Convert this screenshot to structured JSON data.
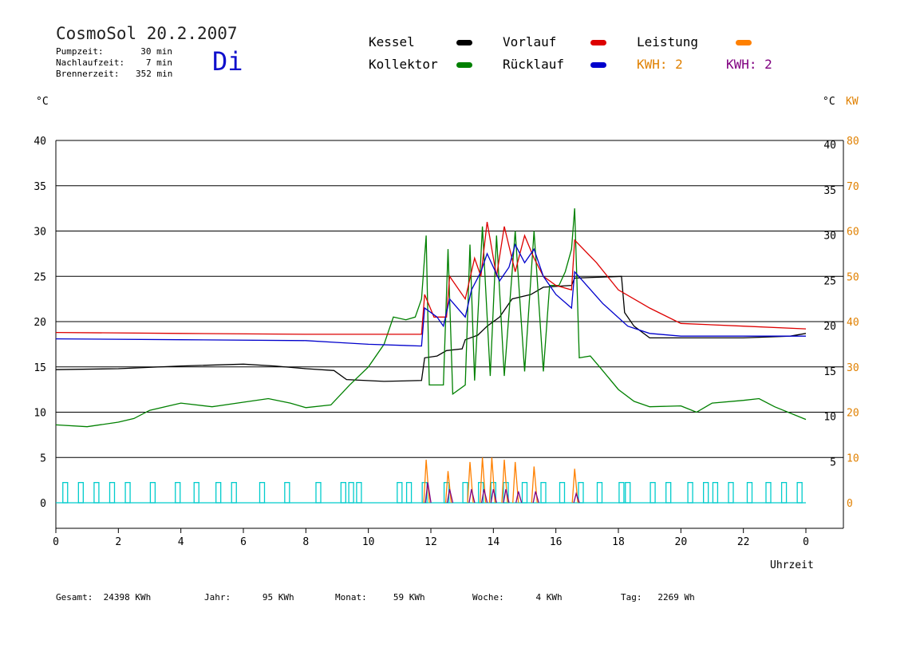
{
  "header": {
    "title": "CosmoSol 20.2.2007",
    "day": "Di",
    "info": [
      {
        "label": "Pumpzeit:",
        "value": "30 min"
      },
      {
        "label": "Nachlaufzeit:",
        "value": "7 min"
      },
      {
        "label": "Brennerzeit:",
        "value": "352 min"
      }
    ]
  },
  "legend": {
    "kessel": "Kessel",
    "kollektor": "Kollektor",
    "vorlauf": "Vorlauf",
    "ruecklauf": "Rücklauf",
    "leistung": "Leistung",
    "kwh1": "KWH: 2",
    "kwh2": "KWH: 2"
  },
  "axes": {
    "left_unit": "°C",
    "right_unit_c": "°C",
    "right_unit_kw": "KW",
    "x_label": "Uhrzeit"
  },
  "footer": [
    {
      "label": "Gesamt:",
      "value": "24398 KWh"
    },
    {
      "label": "Jahr:",
      "value": "95 KWh"
    },
    {
      "label": "Monat:",
      "value": "59 KWh"
    },
    {
      "label": "Woche:",
      "value": "4 KWh"
    },
    {
      "label": "Tag:",
      "value": "2269 Wh"
    }
  ],
  "colors": {
    "kessel": "#000000",
    "kollektor": "#008000",
    "vorlauf": "#dd0000",
    "ruecklauf": "#0000cc",
    "leistung": "#ff8000",
    "kwh1": "#e08000",
    "kwh2": "#800080",
    "pump": "#00cccc",
    "kw_axis": "#e08000"
  },
  "chart_data": {
    "type": "line",
    "xlabel": "Uhrzeit",
    "ylabel": "°C",
    "y2label": "KW",
    "xlim": [
      0,
      24
    ],
    "ylim": [
      0,
      40
    ],
    "y2lim": [
      0,
      80
    ],
    "x_ticks": [
      "0",
      "2",
      "4",
      "6",
      "8",
      "10",
      "12",
      "14",
      "16",
      "18",
      "20",
      "22",
      "0"
    ],
    "y_ticks_left": [
      "0",
      "5",
      "10",
      "15",
      "20",
      "25",
      "30",
      "35",
      "40"
    ],
    "y_ticks_right_c": [
      "5",
      "10",
      "15",
      "20",
      "25",
      "30",
      "35",
      "40"
    ],
    "y_ticks_right_kw": [
      "0",
      "10",
      "20",
      "30",
      "40",
      "50",
      "60",
      "70",
      "80"
    ],
    "grid": true,
    "series": [
      {
        "name": "Kessel",
        "color": "#000000",
        "points": [
          [
            0,
            14.7
          ],
          [
            2,
            14.8
          ],
          [
            4,
            15.1
          ],
          [
            6,
            15.3
          ],
          [
            7,
            15.1
          ],
          [
            8,
            14.8
          ],
          [
            8.9,
            14.6
          ],
          [
            9.3,
            13.6
          ],
          [
            10.5,
            13.4
          ],
          [
            11.7,
            13.5
          ],
          [
            11.8,
            16
          ],
          [
            12.2,
            16.2
          ],
          [
            12.5,
            16.8
          ],
          [
            13,
            17
          ],
          [
            13.1,
            18
          ],
          [
            13.5,
            18.5
          ],
          [
            13.8,
            19.5
          ],
          [
            14.2,
            20.5
          ],
          [
            14.6,
            22.5
          ],
          [
            15.2,
            23
          ],
          [
            15.6,
            23.8
          ],
          [
            16.5,
            24
          ],
          [
            16.6,
            24.8
          ],
          [
            18.1,
            25
          ],
          [
            18.2,
            21
          ],
          [
            18.5,
            19.5
          ],
          [
            19,
            18.2
          ],
          [
            20,
            18.2
          ],
          [
            22,
            18.2
          ],
          [
            23.5,
            18.4
          ],
          [
            24,
            18.7
          ]
        ]
      },
      {
        "name": "Kollektor",
        "color": "#008000",
        "points": [
          [
            0,
            8.6
          ],
          [
            1,
            8.4
          ],
          [
            2,
            8.9
          ],
          [
            2.5,
            9.3
          ],
          [
            3,
            10.2
          ],
          [
            4,
            11
          ],
          [
            5,
            10.6
          ],
          [
            6,
            11.1
          ],
          [
            6.8,
            11.5
          ],
          [
            7.5,
            11
          ],
          [
            8,
            10.5
          ],
          [
            8.8,
            10.8
          ],
          [
            9.4,
            13
          ],
          [
            10,
            15
          ],
          [
            10.5,
            17.5
          ],
          [
            10.8,
            20.5
          ],
          [
            11.2,
            20.2
          ],
          [
            11.5,
            20.5
          ],
          [
            11.7,
            22.5
          ],
          [
            11.85,
            29.5
          ],
          [
            11.95,
            13
          ],
          [
            12.4,
            13
          ],
          [
            12.55,
            28
          ],
          [
            12.7,
            12
          ],
          [
            13.1,
            13
          ],
          [
            13.25,
            28.5
          ],
          [
            13.4,
            13.5
          ],
          [
            13.65,
            30.5
          ],
          [
            13.9,
            14
          ],
          [
            14.1,
            29.5
          ],
          [
            14.35,
            14
          ],
          [
            14.7,
            30
          ],
          [
            15,
            14.5
          ],
          [
            15.3,
            30
          ],
          [
            15.6,
            14.5
          ],
          [
            15.8,
            24
          ],
          [
            16.1,
            24
          ],
          [
            16.3,
            25.5
          ],
          [
            16.5,
            28
          ],
          [
            16.6,
            32.5
          ],
          [
            16.75,
            16
          ],
          [
            17.1,
            16.2
          ],
          [
            17.4,
            15
          ],
          [
            18,
            12.5
          ],
          [
            18.5,
            11.2
          ],
          [
            19,
            10.6
          ],
          [
            20,
            10.7
          ],
          [
            20.5,
            10
          ],
          [
            21,
            11
          ],
          [
            22,
            11.3
          ],
          [
            22.5,
            11.5
          ],
          [
            23,
            10.6
          ],
          [
            24,
            9.2
          ]
        ]
      },
      {
        "name": "Vorlauf",
        "color": "#dd0000",
        "points": [
          [
            0,
            18.8
          ],
          [
            4,
            18.7
          ],
          [
            8,
            18.6
          ],
          [
            10,
            18.6
          ],
          [
            11.7,
            18.6
          ],
          [
            11.8,
            23
          ],
          [
            12.1,
            20.5
          ],
          [
            12.5,
            20.5
          ],
          [
            12.6,
            25
          ],
          [
            13.1,
            22.5
          ],
          [
            13.4,
            27
          ],
          [
            13.6,
            25
          ],
          [
            13.8,
            31
          ],
          [
            14.1,
            25
          ],
          [
            14.35,
            30.5
          ],
          [
            14.7,
            25.5
          ],
          [
            15,
            29.5
          ],
          [
            15.3,
            27
          ],
          [
            15.6,
            25
          ],
          [
            16,
            24
          ],
          [
            16.5,
            23.5
          ],
          [
            16.6,
            29
          ],
          [
            17.3,
            26.5
          ],
          [
            18,
            23.5
          ],
          [
            19,
            21.5
          ],
          [
            20,
            19.8
          ],
          [
            22,
            19.5
          ],
          [
            24,
            19.2
          ]
        ]
      },
      {
        "name": "Rücklauf",
        "color": "#0000cc",
        "points": [
          [
            0,
            18.1
          ],
          [
            4,
            18
          ],
          [
            8,
            17.9
          ],
          [
            9,
            17.7
          ],
          [
            10,
            17.5
          ],
          [
            11.7,
            17.3
          ],
          [
            11.8,
            21.5
          ],
          [
            12.2,
            20.5
          ],
          [
            12.4,
            19.5
          ],
          [
            12.6,
            22.5
          ],
          [
            13.1,
            20.5
          ],
          [
            13.3,
            23.5
          ],
          [
            13.6,
            25.5
          ],
          [
            13.8,
            27.5
          ],
          [
            14.2,
            24.5
          ],
          [
            14.5,
            26
          ],
          [
            14.7,
            28.5
          ],
          [
            15,
            26.5
          ],
          [
            15.3,
            28
          ],
          [
            15.6,
            25
          ],
          [
            16,
            23
          ],
          [
            16.5,
            21.5
          ],
          [
            16.6,
            25.5
          ],
          [
            17.5,
            22
          ],
          [
            18.3,
            19.5
          ],
          [
            19,
            18.7
          ],
          [
            20,
            18.4
          ],
          [
            22,
            18.4
          ],
          [
            24,
            18.4
          ]
        ]
      },
      {
        "name": "Leistung",
        "color": "#ff8000",
        "kw_points": [
          [
            11.85,
            9.5
          ],
          [
            12.55,
            7
          ],
          [
            13.25,
            9
          ],
          [
            13.65,
            10
          ],
          [
            13.95,
            10
          ],
          [
            14.35,
            9.5
          ],
          [
            14.7,
            9
          ],
          [
            15.3,
            8
          ],
          [
            16.6,
            7.5
          ]
        ]
      },
      {
        "name": "KWH: 2",
        "color": "#800080",
        "kw_points": [
          [
            11.9,
            4.5
          ],
          [
            12.6,
            3
          ],
          [
            13.3,
            3
          ],
          [
            13.7,
            3
          ],
          [
            14,
            3
          ],
          [
            14.4,
            3
          ],
          [
            14.8,
            2.5
          ],
          [
            15.35,
            2.5
          ],
          [
            16.65,
            2
          ]
        ]
      }
    ],
    "pump_on_hours": [
      0.3,
      0.8,
      1.3,
      1.8,
      2.3,
      3.1,
      3.9,
      4.5,
      5.2,
      5.7,
      6.6,
      7.4,
      8.4,
      9.2,
      9.45,
      9.7,
      11.0,
      11.3,
      11.8,
      12.5,
      13.1,
      13.6,
      14.0,
      14.4,
      15.0,
      15.6,
      16.2,
      16.8,
      17.4,
      18.1,
      18.3,
      19.1,
      19.6,
      20.3,
      20.8,
      21.1,
      21.6,
      22.2,
      22.8,
      23.3,
      23.8
    ],
    "pump_on_value": 1
  }
}
